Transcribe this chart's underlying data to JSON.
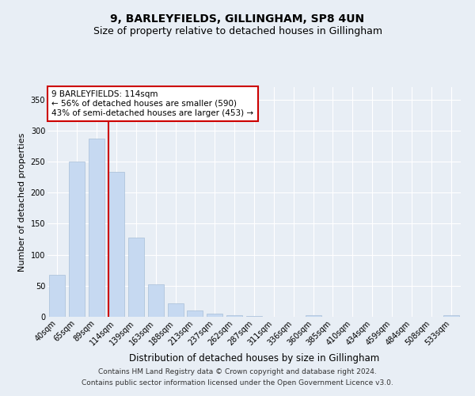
{
  "title": "9, BARLEYFIELDS, GILLINGHAM, SP8 4UN",
  "subtitle": "Size of property relative to detached houses in Gillingham",
  "xlabel": "Distribution of detached houses by size in Gillingham",
  "ylabel": "Number of detached properties",
  "categories": [
    "40sqm",
    "65sqm",
    "89sqm",
    "114sqm",
    "139sqm",
    "163sqm",
    "188sqm",
    "213sqm",
    "237sqm",
    "262sqm",
    "287sqm",
    "311sqm",
    "336sqm",
    "360sqm",
    "385sqm",
    "410sqm",
    "434sqm",
    "459sqm",
    "484sqm",
    "508sqm",
    "533sqm"
  ],
  "values": [
    67,
    250,
    287,
    234,
    128,
    52,
    22,
    10,
    5,
    3,
    1,
    0,
    0,
    3,
    0,
    0,
    0,
    0,
    0,
    0,
    3
  ],
  "bar_color": "#c6d9f1",
  "bar_edge_color": "#a8bfd8",
  "highlight_line_index": 3,
  "highlight_line_color": "#cc0000",
  "annotation_line1": "9 BARLEYFIELDS: 114sqm",
  "annotation_line2": "← 56% of detached houses are smaller (590)",
  "annotation_line3": "43% of semi-detached houses are larger (453) →",
  "annotation_box_color": "#ffffff",
  "annotation_box_edge_color": "#cc0000",
  "ylim": [
    0,
    370
  ],
  "yticks": [
    0,
    50,
    100,
    150,
    200,
    250,
    300,
    350
  ],
  "bg_color": "#e8eef5",
  "plot_bg_color": "#e8eef5",
  "grid_color": "#ffffff",
  "footer_line1": "Contains HM Land Registry data © Crown copyright and database right 2024.",
  "footer_line2": "Contains public sector information licensed under the Open Government Licence v3.0.",
  "title_fontsize": 10,
  "subtitle_fontsize": 9,
  "tick_fontsize": 7,
  "ylabel_fontsize": 8,
  "xlabel_fontsize": 8.5,
  "annotation_fontsize": 7.5,
  "footer_fontsize": 6.5
}
